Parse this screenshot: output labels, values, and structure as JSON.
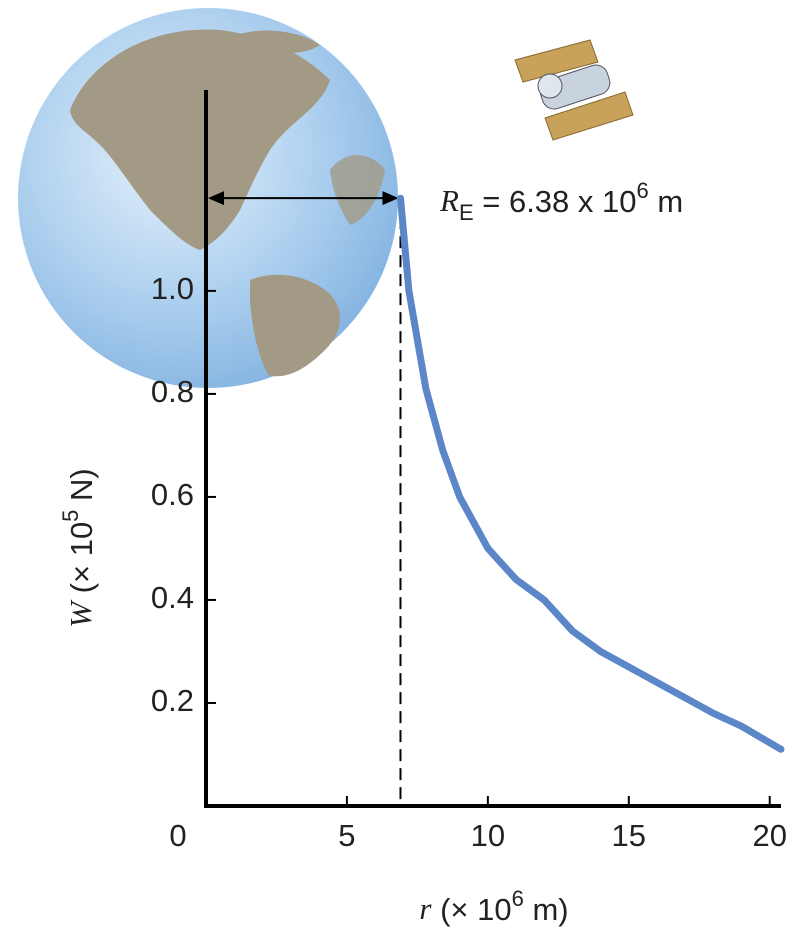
{
  "chart_data": {
    "type": "line",
    "x_label": {
      "symbol": "r",
      "text": " (× 10",
      "exponent": "6",
      "unit": " m)"
    },
    "y_label": {
      "symbol": "W",
      "text": " (× 10",
      "exponent": "5",
      "unit": " N)"
    },
    "annotation": {
      "symbol": "R",
      "subscript": "E",
      "text": " = 6.38 x 10",
      "exponent": "6",
      "unit": " m"
    },
    "x": [
      6.9,
      7.2,
      7.8,
      8.4,
      9.0,
      10,
      11,
      12,
      13,
      14,
      15,
      16,
      17,
      18,
      19,
      20.4
    ],
    "series": [
      {
        "name": "W",
        "color": "#5b87c8",
        "values": [
          1.18,
          1.0,
          0.81,
          0.69,
          0.6,
          0.5,
          0.44,
          0.4,
          0.34,
          0.3,
          0.27,
          0.24,
          0.21,
          0.18,
          0.155,
          0.11
        ]
      }
    ],
    "xlim": [
      0,
      20.4
    ],
    "ylim": [
      0,
      1.39
    ],
    "xticks": [
      0,
      5,
      10,
      15,
      20
    ],
    "yticks": [
      0.2,
      0.4,
      0.6,
      0.8,
      {
        "value": 1,
        "label": "1.0"
      }
    ],
    "grid": false
  }
}
